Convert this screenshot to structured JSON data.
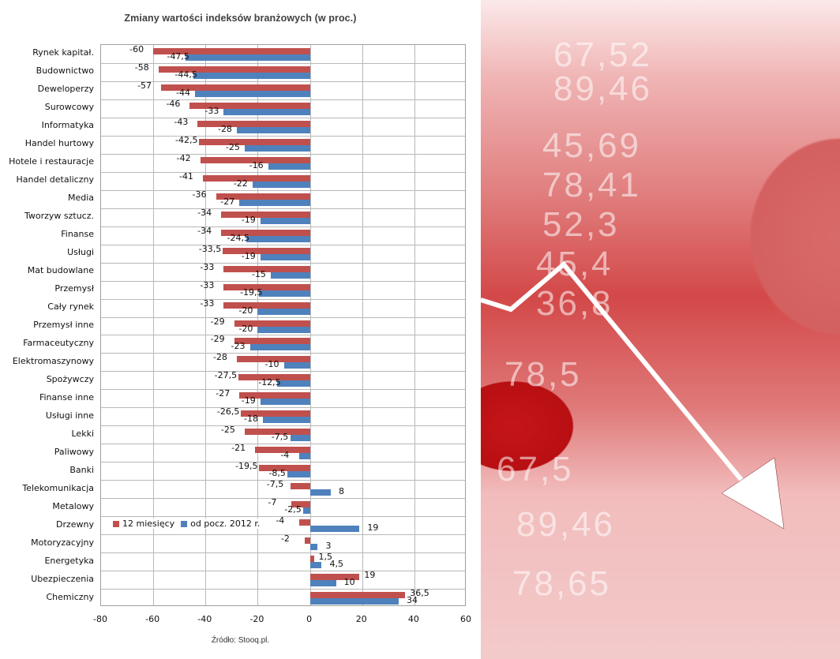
{
  "chart_data": {
    "type": "bar",
    "orientation": "horizontal",
    "title": "Zmiany wartości indeksów branżowych (w proc.)",
    "xlabel": "",
    "ylabel": "",
    "xlim": [
      -80,
      60
    ],
    "x_ticks": [
      "-80",
      "-60",
      "-40",
      "-20",
      "0",
      "20",
      "40",
      "60"
    ],
    "grid": true,
    "legend_position": "inside-bottom-left",
    "categories": [
      "Rynek kapitał.",
      "Budownictwo",
      "Deweloperzy",
      "Surowcowy",
      "Informatyka",
      "Handel hurtowy",
      "Hotele i restauracje",
      "Handel detaliczny",
      "Media",
      "Tworzyw sztucz.",
      "Finanse",
      "Usługi",
      "Mat budowlane",
      "Przemysł",
      "Cały rynek",
      "Przemysł inne",
      "Farmaceutyczny",
      "Elektromaszynowy",
      "Spożywczy",
      "Finanse inne",
      "Usługi inne",
      "Lekki",
      "Paliwowy",
      "Banki",
      "Telekomunikacja",
      "Metalowy",
      "Drzewny",
      "Motoryzacyjny",
      "Energetyka",
      "Ubezpieczenia",
      "Chemiczny"
    ],
    "series": [
      {
        "name": "12 miesięcy",
        "color": "#c0504d",
        "values": [
          -60,
          -58,
          -57,
          -46,
          -43,
          -42.5,
          -42,
          -41,
          -36,
          -34,
          -34,
          -33.5,
          -33,
          -33,
          -33,
          -29,
          -29,
          -28,
          -27.5,
          -27,
          -26.5,
          -25,
          -21,
          -19.5,
          -7.5,
          -7,
          -4,
          -2,
          1.5,
          19,
          36.5
        ],
        "labels": [
          "-60",
          "-58",
          "-57",
          "-46",
          "-43",
          "-42,5",
          "-42",
          "-41",
          "-36",
          "-34",
          "-34",
          "-33,5",
          "-33",
          "-33",
          "-33",
          "-29",
          "-29",
          "-28",
          "-27,5",
          "-27",
          "-26,5",
          "-25",
          "-21",
          "-19,5",
          "-7,5",
          "-7",
          "-4",
          "-2",
          "1,5",
          "19",
          "36,5"
        ]
      },
      {
        "name": "od pocz. 2012 r.",
        "color": "#4f81bd",
        "values": [
          -47.5,
          -44.5,
          -44,
          -33,
          -28,
          -25,
          -16,
          -22,
          -27,
          -19,
          -24.5,
          -19,
          -15,
          -19.5,
          -20,
          -20,
          -23,
          -10,
          -12.5,
          -19,
          -18,
          -7.5,
          -4,
          -8.5,
          8,
          -2.5,
          19,
          3,
          4.5,
          10,
          34
        ],
        "labels": [
          "-47,5",
          "-44,5",
          "-44",
          "-33",
          "-28",
          "-25",
          "-16",
          "-22",
          "-27",
          "-19",
          "-24,5",
          "-19",
          "-15",
          "-19,5",
          "-20",
          "-20",
          "-23",
          "-10",
          "-12,5",
          "-19",
          "-18",
          "-7,5",
          "-4",
          "-8,5",
          "8",
          "-2,5",
          "19",
          "3",
          "4,5",
          "10",
          "34"
        ]
      }
    ],
    "source": "Źródło: Stooq.pl."
  },
  "legend": {
    "item1": "12 miesięcy",
    "item2": "od pocz. 2012 r."
  },
  "photo": {
    "numbers": [
      "67,52",
      "89,46",
      "45,69",
      "78,41",
      "52,3",
      "45,4",
      "36,8",
      "78,5",
      "67,5",
      "89,46",
      "78,65"
    ]
  }
}
